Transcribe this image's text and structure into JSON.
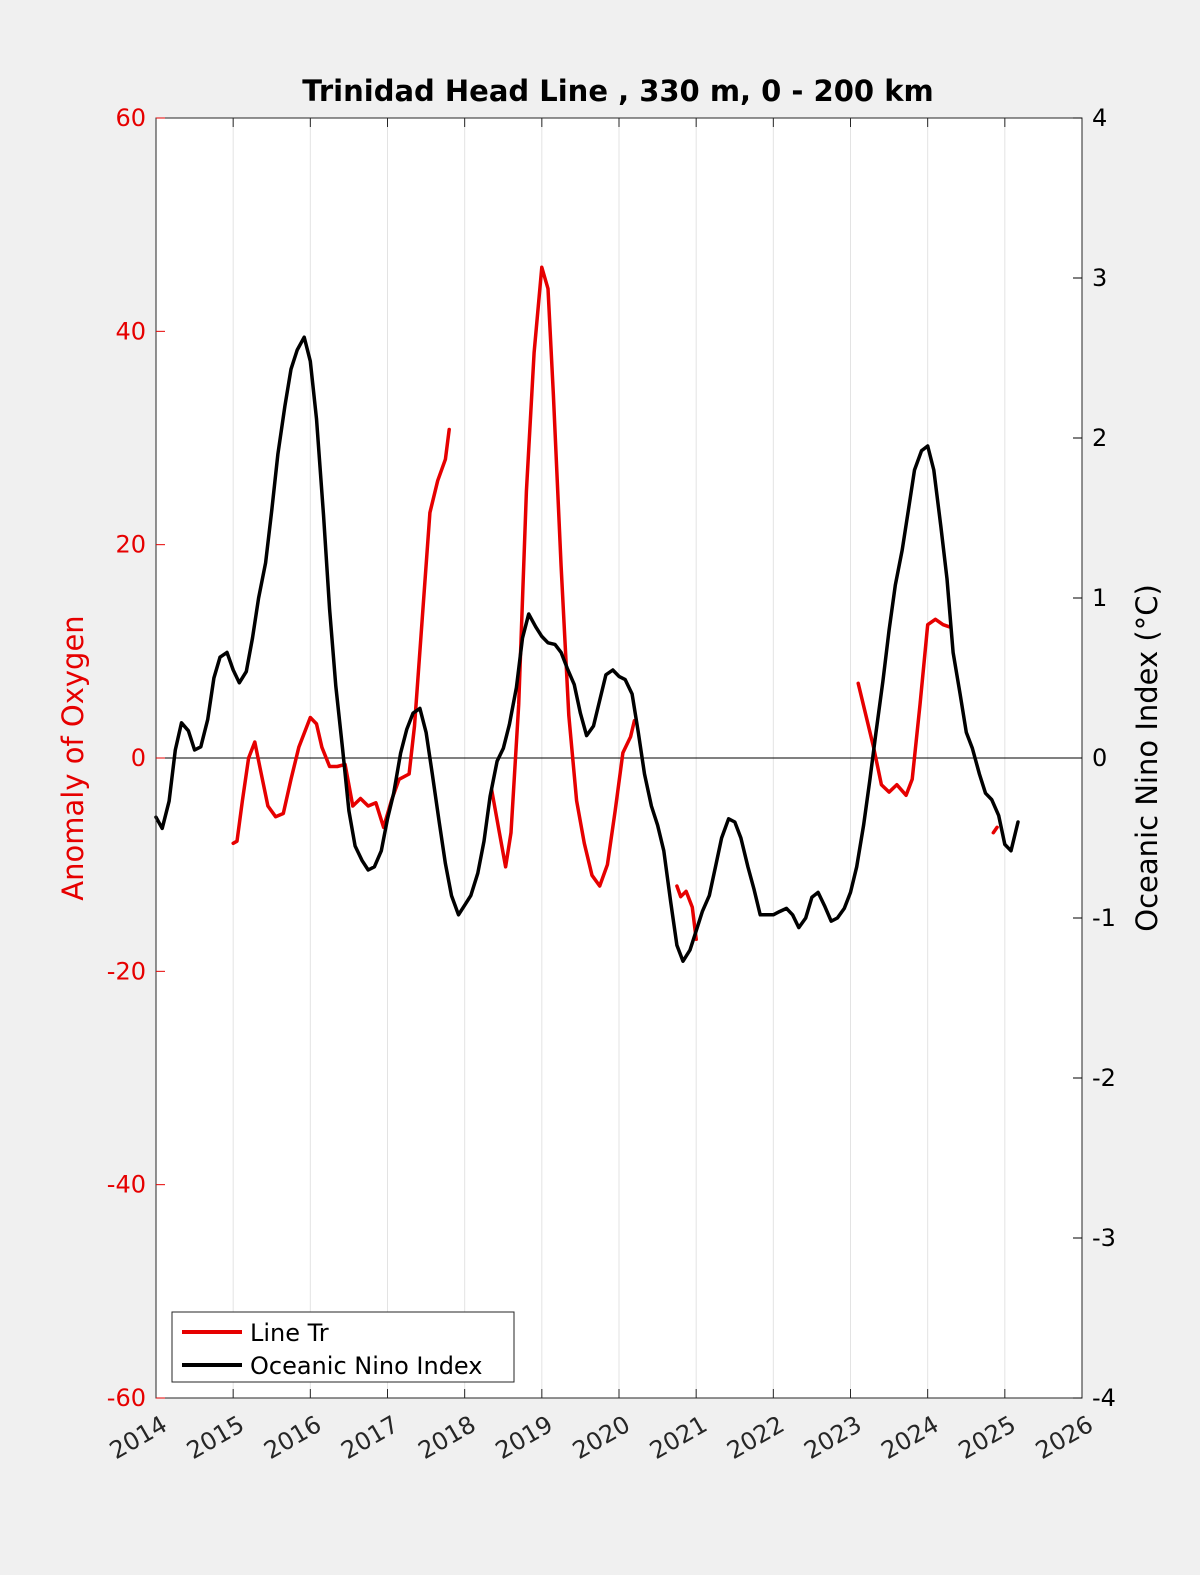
{
  "chart_data": {
    "type": "line",
    "title": "Trinidad Head Line , 330 m, 0 - 200 km",
    "ylabel_left": "Anomaly of Oxygen",
    "ylabel_right": "Oceanic Nino Index (°C)",
    "xlabel": "",
    "xlim": [
      2014,
      2026
    ],
    "ylim_left": [
      -60,
      60
    ],
    "ylim_right": [
      -4,
      4
    ],
    "x_ticks": [
      "2014",
      "2015",
      "2016",
      "2017",
      "2018",
      "2019",
      "2020",
      "2021",
      "2022",
      "2023",
      "2024",
      "2025",
      "2026"
    ],
    "y_left_ticks": [
      "-60",
      "-40",
      "-20",
      "0",
      "20",
      "40",
      "60"
    ],
    "y_right_ticks": [
      "-4",
      "-3",
      "-2",
      "-1",
      "0",
      "1",
      "2",
      "3",
      "4"
    ],
    "x_grid": true,
    "y_grid": false,
    "zero_line": true,
    "legend_position": "bottom-left",
    "colors": {
      "line_tr": "#e60000",
      "oni": "#000000",
      "left_axis": "#e60000",
      "right_axis": "#000000"
    },
    "series": [
      {
        "name": "Line Tr",
        "axis": "left",
        "segments": [
          [
            [
              2015.0,
              -8
            ],
            [
              2015.05,
              -7.8
            ],
            [
              2015.12,
              -4
            ],
            [
              2015.2,
              0
            ],
            [
              2015.28,
              1.5
            ],
            [
              2015.35,
              -1
            ],
            [
              2015.45,
              -4.5
            ],
            [
              2015.55,
              -5.5
            ],
            [
              2015.65,
              -5.2
            ],
            [
              2015.75,
              -2
            ],
            [
              2015.85,
              1
            ],
            [
              2016.0,
              3.8
            ],
            [
              2016.08,
              3.2
            ],
            [
              2016.15,
              1
            ],
            [
              2016.25,
              -0.8
            ],
            [
              2016.35,
              -0.8
            ],
            [
              2016.45,
              -0.6
            ],
            [
              2016.55,
              -4.5
            ],
            [
              2016.65,
              -3.8
            ],
            [
              2016.75,
              -4.5
            ],
            [
              2016.85,
              -4.2
            ],
            [
              2016.95,
              -6.5
            ],
            [
              2017.05,
              -4
            ],
            [
              2017.15,
              -2
            ],
            [
              2017.28,
              -1.5
            ],
            [
              2017.35,
              3
            ],
            [
              2017.45,
              13
            ],
            [
              2017.55,
              23
            ],
            [
              2017.65,
              26
            ],
            [
              2017.75,
              28
            ],
            [
              2017.8,
              30.8
            ]
          ],
          [
            [
              2018.35,
              -3
            ],
            [
              2018.45,
              -7
            ],
            [
              2018.53,
              -10.2
            ],
            [
              2018.6,
              -7
            ],
            [
              2018.7,
              5
            ],
            [
              2018.8,
              25
            ],
            [
              2018.9,
              38
            ],
            [
              2019.0,
              46
            ],
            [
              2019.08,
              44
            ],
            [
              2019.15,
              34
            ],
            [
              2019.25,
              18
            ],
            [
              2019.35,
              4
            ],
            [
              2019.45,
              -4
            ],
            [
              2019.55,
              -8
            ],
            [
              2019.65,
              -11
            ],
            [
              2019.75,
              -12
            ],
            [
              2019.85,
              -10
            ],
            [
              2019.95,
              -5
            ],
            [
              2020.05,
              0.5
            ],
            [
              2020.15,
              2
            ],
            [
              2020.2,
              3.5
            ]
          ],
          [
            [
              2020.75,
              -12
            ],
            [
              2020.8,
              -13
            ],
            [
              2020.87,
              -12.5
            ],
            [
              2020.95,
              -14
            ],
            [
              2021.0,
              -17
            ]
          ],
          [
            [
              2023.1,
              7
            ],
            [
              2023.2,
              4
            ],
            [
              2023.3,
              1
            ],
            [
              2023.4,
              -2.5
            ],
            [
              2023.5,
              -3.2
            ],
            [
              2023.6,
              -2.5
            ],
            [
              2023.72,
              -3.5
            ],
            [
              2023.8,
              -2
            ],
            [
              2023.9,
              5
            ],
            [
              2024.0,
              12.5
            ],
            [
              2024.1,
              13
            ],
            [
              2024.2,
              12.5
            ],
            [
              2024.28,
              12.3
            ]
          ],
          [
            [
              2024.85,
              -7
            ],
            [
              2024.9,
              -6.5
            ]
          ]
        ]
      },
      {
        "name": "Oceanic Nino Index",
        "axis": "right",
        "segments": [
          [
            [
              2014.0,
              -0.37
            ],
            [
              2014.08,
              -0.44
            ],
            [
              2014.17,
              -0.27
            ],
            [
              2014.25,
              0.05
            ],
            [
              2014.33,
              0.22
            ],
            [
              2014.42,
              0.17
            ],
            [
              2014.5,
              0.05
            ],
            [
              2014.58,
              0.07
            ],
            [
              2014.67,
              0.24
            ],
            [
              2014.75,
              0.5
            ],
            [
              2014.83,
              0.63
            ],
            [
              2014.92,
              0.66
            ],
            [
              2015.0,
              0.55
            ],
            [
              2015.08,
              0.47
            ],
            [
              2015.17,
              0.54
            ],
            [
              2015.25,
              0.75
            ],
            [
              2015.33,
              1.0
            ],
            [
              2015.42,
              1.22
            ],
            [
              2015.5,
              1.55
            ],
            [
              2015.58,
              1.9
            ],
            [
              2015.67,
              2.2
            ],
            [
              2015.75,
              2.43
            ],
            [
              2015.83,
              2.55
            ],
            [
              2015.92,
              2.63
            ],
            [
              2016.0,
              2.48
            ],
            [
              2016.08,
              2.12
            ],
            [
              2016.17,
              1.52
            ],
            [
              2016.25,
              0.93
            ],
            [
              2016.33,
              0.45
            ],
            [
              2016.42,
              0.05
            ],
            [
              2016.5,
              -0.33
            ],
            [
              2016.58,
              -0.55
            ],
            [
              2016.67,
              -0.64
            ],
            [
              2016.75,
              -0.7
            ],
            [
              2016.83,
              -0.68
            ],
            [
              2016.92,
              -0.58
            ],
            [
              2017.0,
              -0.38
            ],
            [
              2017.08,
              -0.22
            ],
            [
              2017.17,
              0.03
            ],
            [
              2017.25,
              0.18
            ],
            [
              2017.33,
              0.28
            ],
            [
              2017.42,
              0.31
            ],
            [
              2017.5,
              0.16
            ],
            [
              2017.58,
              -0.1
            ],
            [
              2017.67,
              -0.4
            ],
            [
              2017.75,
              -0.66
            ],
            [
              2017.83,
              -0.86
            ],
            [
              2017.92,
              -0.98
            ],
            [
              2018.0,
              -0.92
            ],
            [
              2018.08,
              -0.86
            ],
            [
              2018.17,
              -0.72
            ],
            [
              2018.25,
              -0.52
            ],
            [
              2018.33,
              -0.24
            ],
            [
              2018.42,
              -0.02
            ],
            [
              2018.5,
              0.06
            ],
            [
              2018.58,
              0.21
            ],
            [
              2018.67,
              0.44
            ],
            [
              2018.75,
              0.75
            ],
            [
              2018.83,
              0.9
            ],
            [
              2018.92,
              0.82
            ],
            [
              2019.0,
              0.76
            ],
            [
              2019.08,
              0.72
            ],
            [
              2019.17,
              0.71
            ],
            [
              2019.25,
              0.66
            ],
            [
              2019.33,
              0.56
            ],
            [
              2019.42,
              0.46
            ],
            [
              2019.5,
              0.28
            ],
            [
              2019.58,
              0.14
            ],
            [
              2019.67,
              0.2
            ],
            [
              2019.75,
              0.36
            ],
            [
              2019.83,
              0.52
            ],
            [
              2019.92,
              0.55
            ],
            [
              2020.0,
              0.51
            ],
            [
              2020.08,
              0.49
            ],
            [
              2020.17,
              0.4
            ],
            [
              2020.25,
              0.16
            ],
            [
              2020.33,
              -0.1
            ],
            [
              2020.42,
              -0.3
            ],
            [
              2020.5,
              -0.42
            ],
            [
              2020.58,
              -0.58
            ],
            [
              2020.67,
              -0.9
            ],
            [
              2020.75,
              -1.17
            ],
            [
              2020.83,
              -1.27
            ],
            [
              2020.92,
              -1.2
            ],
            [
              2021.0,
              -1.08
            ],
            [
              2021.08,
              -0.96
            ],
            [
              2021.17,
              -0.86
            ],
            [
              2021.25,
              -0.68
            ],
            [
              2021.33,
              -0.5
            ],
            [
              2021.42,
              -0.38
            ],
            [
              2021.5,
              -0.4
            ],
            [
              2021.58,
              -0.5
            ],
            [
              2021.67,
              -0.68
            ],
            [
              2021.75,
              -0.82
            ],
            [
              2021.83,
              -0.98
            ],
            [
              2021.92,
              -0.98
            ],
            [
              2022.0,
              -0.98
            ],
            [
              2022.08,
              -0.96
            ],
            [
              2022.17,
              -0.94
            ],
            [
              2022.25,
              -0.98
            ],
            [
              2022.33,
              -1.06
            ],
            [
              2022.42,
              -1.0
            ],
            [
              2022.5,
              -0.87
            ],
            [
              2022.58,
              -0.84
            ],
            [
              2022.67,
              -0.93
            ],
            [
              2022.75,
              -1.02
            ],
            [
              2022.83,
              -1.0
            ],
            [
              2022.92,
              -0.94
            ],
            [
              2023.0,
              -0.84
            ],
            [
              2023.08,
              -0.68
            ],
            [
              2023.17,
              -0.42
            ],
            [
              2023.25,
              -0.14
            ],
            [
              2023.33,
              0.16
            ],
            [
              2023.42,
              0.48
            ],
            [
              2023.5,
              0.8
            ],
            [
              2023.58,
              1.08
            ],
            [
              2023.67,
              1.3
            ],
            [
              2023.75,
              1.55
            ],
            [
              2023.83,
              1.8
            ],
            [
              2023.92,
              1.92
            ],
            [
              2024.0,
              1.95
            ],
            [
              2024.08,
              1.8
            ],
            [
              2024.17,
              1.45
            ],
            [
              2024.25,
              1.12
            ],
            [
              2024.33,
              0.66
            ],
            [
              2024.42,
              0.4
            ],
            [
              2024.5,
              0.16
            ],
            [
              2024.58,
              0.06
            ],
            [
              2024.67,
              -0.1
            ],
            [
              2024.75,
              -0.22
            ],
            [
              2024.83,
              -0.26
            ],
            [
              2024.92,
              -0.36
            ],
            [
              2025.0,
              -0.54
            ],
            [
              2025.08,
              -0.58
            ],
            [
              2025.17,
              -0.4
            ]
          ]
        ]
      }
    ]
  }
}
